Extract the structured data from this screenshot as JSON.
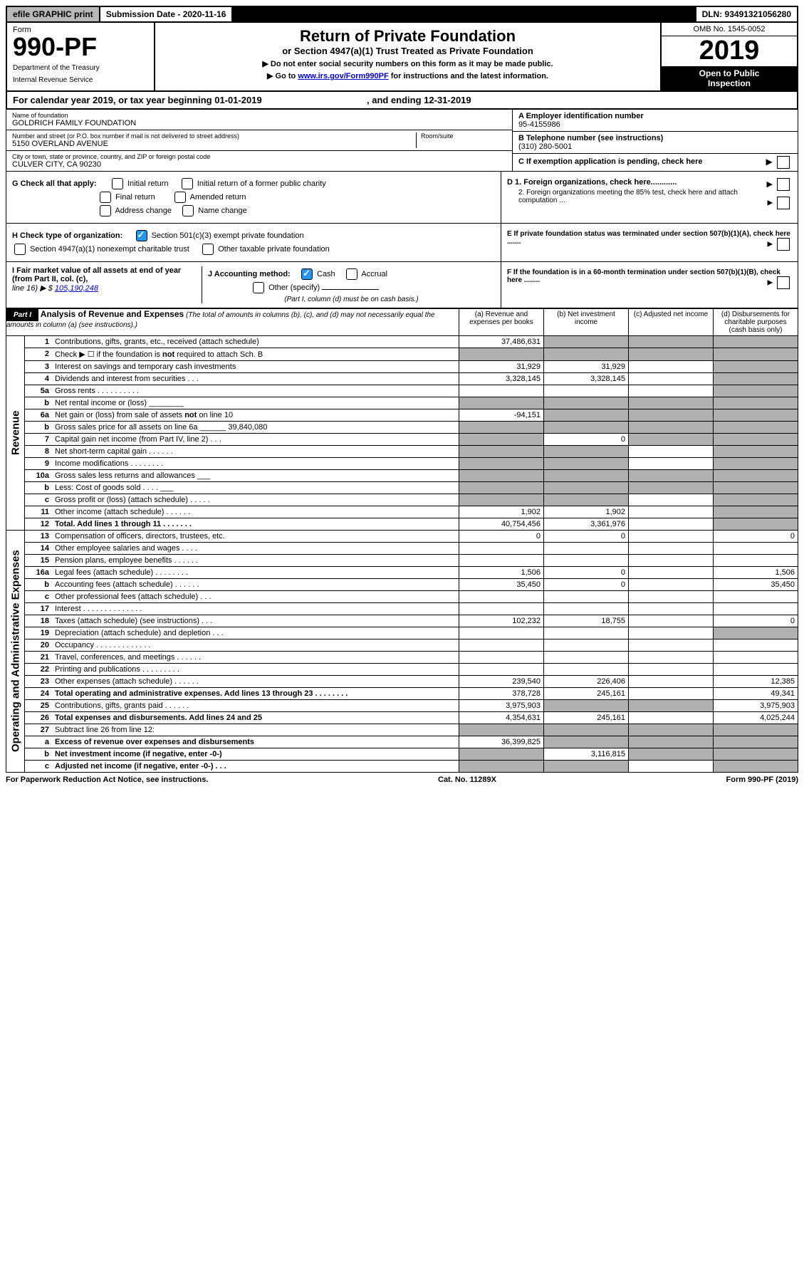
{
  "top": {
    "efile": "efile GRAPHIC print",
    "submission": "Submission Date - 2020-11-16",
    "dln": "DLN: 93491321056280"
  },
  "header": {
    "form_label": "Form",
    "form_number": "990-PF",
    "dept1": "Department of the Treasury",
    "dept2": "Internal Revenue Service",
    "title": "Return of Private Foundation",
    "subtitle": "or Section 4947(a)(1) Trust Treated as Private Foundation",
    "inst1": "▶ Do not enter social security numbers on this form as it may be made public.",
    "inst2_pre": "▶ Go to ",
    "inst2_link": "www.irs.gov/Form990PF",
    "inst2_post": " for instructions and the latest information.",
    "omb": "OMB No. 1545-0052",
    "year": "2019",
    "insp1": "Open to Public",
    "insp2": "Inspection"
  },
  "cal_year": {
    "pre": "For calendar year 2019, or tax year beginning 01-01-2019",
    "mid": ", and ending 12-31-2019"
  },
  "entity": {
    "name_label": "Name of foundation",
    "name": "GOLDRICH FAMILY FOUNDATION",
    "addr_label": "Number and street (or P.O. box number if mail is not delivered to street address)",
    "addr": "5150 OVERLAND AVENUE",
    "room_label": "Room/suite",
    "city_label": "City or town, state or province, country, and ZIP or foreign postal code",
    "city": "CULVER CITY, CA  90230",
    "ein_label": "A Employer identification number",
    "ein": "95-4155986",
    "phone_label": "B Telephone number (see instructions)",
    "phone": "(310) 280-5001",
    "c_label": "C If exemption application is pending, check here"
  },
  "checks": {
    "g_label": "G Check all that apply:",
    "g_opts": [
      "Initial return",
      "Initial return of a former public charity",
      "Final return",
      "Amended return",
      "Address change",
      "Name change"
    ],
    "h_label": "H Check type of organization:",
    "h1": "Section 501(c)(3) exempt private foundation",
    "h2": "Section 4947(a)(1) nonexempt charitable trust",
    "h3": "Other taxable private foundation",
    "i_label": "I Fair market value of all assets at end of year (from Part II, col. (c),",
    "i_line": "line 16) ▶ $",
    "i_value": "105,190,248",
    "j_label": "J Accounting method:",
    "j_cash": "Cash",
    "j_accrual": "Accrual",
    "j_other": "Other (specify)",
    "j_note": "(Part I, column (d) must be on cash basis.)",
    "d1": "D 1. Foreign organizations, check here............",
    "d2": "2. Foreign organizations meeting the 85% test, check here and attach computation ...",
    "e": "E  If private foundation status was terminated under section 507(b)(1)(A), check here .......",
    "f": "F  If the foundation is in a 60-month termination under section 507(b)(1)(B), check here ........"
  },
  "part1": {
    "label": "Part I",
    "title": "Analysis of Revenue and Expenses",
    "note": "(The total of amounts in columns (b), (c), and (d) may not necessarily equal the amounts in column (a) (see instructions).)",
    "cols": {
      "a": "(a)    Revenue and expenses per books",
      "b": "(b)   Net investment income",
      "c": "(c)   Adjusted net income",
      "d": "(d)   Disbursements for charitable purposes (cash basis only)"
    }
  },
  "side_labels": {
    "revenue": "Revenue",
    "expenses": "Operating and Administrative Expenses"
  },
  "rows": [
    {
      "n": "1",
      "d": "Contributions, gifts, grants, etc., received (attach schedule)",
      "a": "37,486,631",
      "b": "",
      "bs": true,
      "c": "",
      "cs": true,
      "ds": true
    },
    {
      "n": "2",
      "d": "Check ▶ ☐ if the foundation is not required to attach Sch. B",
      "a": "",
      "as": true,
      "bs": true,
      "cs": true,
      "ds": true
    },
    {
      "n": "3",
      "d": "Interest on savings and temporary cash investments",
      "a": "31,929",
      "b": "31,929",
      "cs": false,
      "ds": true
    },
    {
      "n": "4",
      "d": "Dividends and interest from securities   .   .   .",
      "a": "3,328,145",
      "b": "3,328,145",
      "ds": true
    },
    {
      "n": "5a",
      "d": "Gross rents     .   .   .   .   .   .   .   .   .   .",
      "ds": true
    },
    {
      "n": "b",
      "d": "Net rental income or (loss)  ________",
      "as": true,
      "bs": true,
      "cs": true,
      "ds": true
    },
    {
      "n": "6a",
      "d": "Net gain or (loss) from sale of assets not on line 10",
      "a": "-94,151",
      "bs": true,
      "cs": true,
      "ds": true
    },
    {
      "n": "b",
      "d": "Gross sales price for all assets on line 6a ______ 39,840,080",
      "as": true,
      "bs": true,
      "cs": true,
      "ds": true
    },
    {
      "n": "7",
      "d": "Capital gain net income (from Part IV, line 2)   .   .   .",
      "as": true,
      "b": "0",
      "cs": true,
      "ds": true
    },
    {
      "n": "8",
      "d": "Net short-term capital gain   .   .   .   .   .   .",
      "as": true,
      "bs": true,
      "ds": true
    },
    {
      "n": "9",
      "d": "Income modifications  .   .   .   .   .   .   .   .",
      "as": true,
      "bs": true,
      "ds": true
    },
    {
      "n": "10a",
      "d": "Gross sales less returns and allowances  ___",
      "as": true,
      "bs": true,
      "cs": true,
      "ds": true
    },
    {
      "n": "b",
      "d": "Less: Cost of goods sold     .   .   .   .  ___",
      "as": true,
      "bs": true,
      "cs": true,
      "ds": true
    },
    {
      "n": "c",
      "d": "Gross profit or (loss) (attach schedule)    .   .   .   .   .",
      "as": true,
      "bs": true,
      "ds": true
    },
    {
      "n": "11",
      "d": "Other income (attach schedule)    .   .   .   .   .   .",
      "a": "1,902",
      "b": "1,902",
      "ds": true
    },
    {
      "n": "12",
      "d": "Total. Add lines 1 through 11    .   .   .   .   .   .   .",
      "bold": true,
      "a": "40,754,456",
      "b": "3,361,976",
      "ds": true
    }
  ],
  "exp_rows": [
    {
      "n": "13",
      "d": "Compensation of officers, directors, trustees, etc.",
      "a": "0",
      "b": "0",
      "d_": "0"
    },
    {
      "n": "14",
      "d": "Other employee salaries and wages    .   .   .   ."
    },
    {
      "n": "15",
      "d": "Pension plans, employee benefits   .   .   .   .   .   ."
    },
    {
      "n": "16a",
      "d": "Legal fees (attach schedule)  .   .   .   .   .   .   .   .",
      "a": "1,506",
      "b": "0",
      "d_": "1,506"
    },
    {
      "n": "b",
      "d": "Accounting fees (attach schedule)  .   .   .   .   .   .",
      "a": "35,450",
      "b": "0",
      "d_": "35,450"
    },
    {
      "n": "c",
      "d": "Other professional fees (attach schedule)     .   .   ."
    },
    {
      "n": "17",
      "d": "Interest  .   .   .   .   .   .   .   .   .   .   .   .   .   ."
    },
    {
      "n": "18",
      "d": "Taxes (attach schedule) (see instructions)     .   .   .",
      "a": "102,232",
      "b": "18,755",
      "d_": "0"
    },
    {
      "n": "19",
      "d": "Depreciation (attach schedule) and depletion    .   .   .",
      "ds": true
    },
    {
      "n": "20",
      "d": "Occupancy  .   .   .   .   .   .   .   .   .   .   .   .   ."
    },
    {
      "n": "21",
      "d": "Travel, conferences, and meetings  .   .   .   .   .   ."
    },
    {
      "n": "22",
      "d": "Printing and publications  .   .   .   .   .   .   .   .   ."
    },
    {
      "n": "23",
      "d": "Other expenses (attach schedule)  .   .   .   .   .   .",
      "a": "239,540",
      "b": "226,406",
      "d_": "12,385"
    },
    {
      "n": "24",
      "d": "Total operating and administrative expenses. Add lines 13 through 23   .   .   .   .   .   .   .   .",
      "bold": true,
      "a": "378,728",
      "b": "245,161",
      "d_": "49,341"
    },
    {
      "n": "25",
      "d": "Contributions, gifts, grants paid      .   .   .   .   .   .",
      "a": "3,975,903",
      "bs": true,
      "cs": true,
      "d_": "3,975,903"
    },
    {
      "n": "26",
      "d": "Total expenses and disbursements. Add lines 24 and 25",
      "bold": true,
      "a": "4,354,631",
      "b": "245,161",
      "d_": "4,025,244"
    },
    {
      "n": "27",
      "d": "Subtract line 26 from line 12:",
      "as": true,
      "bs": true,
      "cs": true,
      "ds": true
    },
    {
      "n": "a",
      "d": "Excess of revenue over expenses and disbursements",
      "bold": true,
      "a": "36,399,825",
      "bs": true,
      "cs": true,
      "ds": true
    },
    {
      "n": "b",
      "d": "Net investment income (if negative, enter -0-)",
      "bold": true,
      "as": true,
      "b": "3,116,815",
      "cs": true,
      "ds": true
    },
    {
      "n": "c",
      "d": "Adjusted net income (if negative, enter -0-)   .   .   .",
      "bold": true,
      "as": true,
      "bs": true,
      "ds": true
    }
  ],
  "footer": {
    "left": "For Paperwork Reduction Act Notice, see instructions.",
    "mid": "Cat. No. 11289X",
    "right": "Form 990-PF (2019)"
  }
}
